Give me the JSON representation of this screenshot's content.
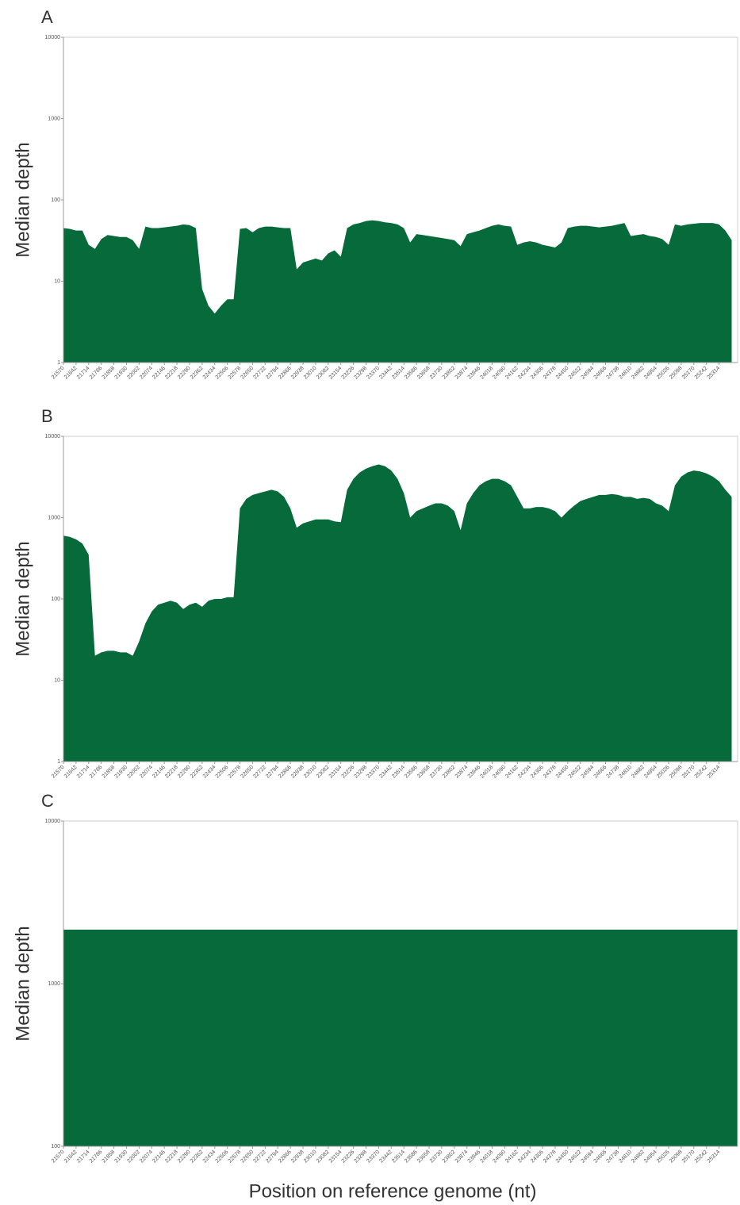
{
  "chart_data": [
    {
      "type": "area",
      "title": "A",
      "ylabel": "Median depth",
      "color": "#076a3b",
      "log_y": true,
      "xlim": [
        21570,
        25420
      ],
      "ylim": [
        1,
        10000
      ],
      "yticks": [
        1,
        10,
        100,
        1000,
        10000
      ],
      "xticks": [
        21570,
        21642,
        21714,
        21786,
        21858,
        21930,
        22002,
        22074,
        22146,
        22218,
        22290,
        22362,
        22434,
        22506,
        22578,
        22650,
        22722,
        22794,
        22866,
        22938,
        23010,
        23082,
        23154,
        23226,
        23298,
        23370,
        23442,
        23514,
        23586,
        23658,
        23730,
        23802,
        23874,
        23946,
        24018,
        24090,
        24162,
        24234,
        24306,
        24378,
        24450,
        24522,
        24594,
        24666,
        24738,
        24810,
        24882,
        24954,
        25026,
        25098,
        25170,
        25242,
        25314
      ],
      "x": [
        21570,
        21606,
        21642,
        21678,
        21714,
        21750,
        21786,
        21822,
        21858,
        21894,
        21930,
        21966,
        22002,
        22038,
        22074,
        22110,
        22146,
        22182,
        22218,
        22254,
        22290,
        22326,
        22362,
        22398,
        22434,
        22470,
        22506,
        22542,
        22578,
        22614,
        22650,
        22686,
        22722,
        22758,
        22794,
        22830,
        22866,
        22902,
        22938,
        22974,
        23010,
        23046,
        23082,
        23118,
        23154,
        23190,
        23226,
        23262,
        23298,
        23334,
        23370,
        23406,
        23442,
        23478,
        23514,
        23550,
        23586,
        23622,
        23658,
        23694,
        23730,
        23766,
        23802,
        23838,
        23874,
        23910,
        23946,
        23982,
        24018,
        24054,
        24090,
        24126,
        24162,
        24198,
        24234,
        24270,
        24306,
        24342,
        24378,
        24414,
        24450,
        24486,
        24522,
        24558,
        24594,
        24630,
        24666,
        24702,
        24738,
        24774,
        24810,
        24846,
        24882,
        24918,
        24954,
        24990,
        25026,
        25062,
        25098,
        25134,
        25170,
        25206,
        25242,
        25278,
        25314,
        25350,
        25386
      ],
      "values": [
        45,
        44,
        42,
        42,
        28,
        25,
        33,
        37,
        36,
        35,
        35,
        32,
        25,
        47,
        45,
        45,
        46,
        47,
        48,
        50,
        49,
        45,
        8,
        5,
        4,
        5,
        6,
        6,
        44,
        45,
        40,
        45,
        47,
        47,
        46,
        45,
        45,
        14,
        17,
        18,
        19,
        18,
        22,
        24,
        20,
        45,
        50,
        52,
        55,
        56,
        55,
        53,
        52,
        50,
        45,
        30,
        38,
        37,
        36,
        35,
        34,
        33,
        32,
        27,
        38,
        40,
        42,
        45,
        48,
        50,
        48,
        47,
        28,
        30,
        31,
        30,
        28,
        27,
        26,
        30,
        45,
        47,
        48,
        48,
        47,
        46,
        47,
        48,
        50,
        52,
        36,
        37,
        38,
        36,
        35,
        33,
        28,
        50,
        48,
        50,
        51,
        52,
        52,
        52,
        50,
        42,
        32
      ]
    },
    {
      "type": "area",
      "title": "B",
      "ylabel": "Median depth",
      "color": "#076a3b",
      "log_y": true,
      "xlim": [
        21570,
        25420
      ],
      "ylim": [
        1,
        10000
      ],
      "yticks": [
        1,
        10,
        100,
        1000,
        10000
      ],
      "xticks": [
        21570,
        21642,
        21714,
        21786,
        21858,
        21930,
        22002,
        22074,
        22146,
        22218,
        22290,
        22362,
        22434,
        22506,
        22578,
        22650,
        22722,
        22794,
        22866,
        22938,
        23010,
        23082,
        23154,
        23226,
        23298,
        23370,
        23442,
        23514,
        23586,
        23658,
        23730,
        23802,
        23874,
        23946,
        24018,
        24090,
        24162,
        24234,
        24306,
        24378,
        24450,
        24522,
        24594,
        24666,
        24738,
        24810,
        24882,
        24954,
        25026,
        25098,
        25170,
        25242,
        25314
      ],
      "x": [
        21570,
        21606,
        21642,
        21678,
        21714,
        21750,
        21786,
        21822,
        21858,
        21894,
        21930,
        21966,
        22002,
        22038,
        22074,
        22110,
        22146,
        22182,
        22218,
        22254,
        22290,
        22326,
        22362,
        22398,
        22434,
        22470,
        22506,
        22542,
        22578,
        22614,
        22650,
        22686,
        22722,
        22758,
        22794,
        22830,
        22866,
        22902,
        22938,
        22974,
        23010,
        23046,
        23082,
        23118,
        23154,
        23190,
        23226,
        23262,
        23298,
        23334,
        23370,
        23406,
        23442,
        23478,
        23514,
        23550,
        23586,
        23622,
        23658,
        23694,
        23730,
        23766,
        23802,
        23838,
        23874,
        23910,
        23946,
        23982,
        24018,
        24054,
        24090,
        24126,
        24162,
        24198,
        24234,
        24270,
        24306,
        24342,
        24378,
        24414,
        24450,
        24486,
        24522,
        24558,
        24594,
        24630,
        24666,
        24702,
        24738,
        24774,
        24810,
        24846,
        24882,
        24918,
        24954,
        24990,
        25026,
        25062,
        25098,
        25134,
        25170,
        25206,
        25242,
        25278,
        25314,
        25350,
        25386
      ],
      "values": [
        600,
        580,
        540,
        480,
        350,
        20,
        22,
        23,
        23,
        22,
        22,
        20,
        30,
        50,
        70,
        85,
        90,
        95,
        90,
        75,
        85,
        90,
        80,
        95,
        100,
        100,
        105,
        105,
        1300,
        1700,
        1900,
        2000,
        2100,
        2200,
        2100,
        1800,
        1300,
        750,
        850,
        900,
        950,
        950,
        950,
        900,
        880,
        2200,
        3000,
        3600,
        4000,
        4300,
        4500,
        4300,
        3800,
        3000,
        2000,
        1000,
        1200,
        1300,
        1400,
        1500,
        1500,
        1400,
        1200,
        700,
        1500,
        2000,
        2500,
        2800,
        3000,
        3000,
        2800,
        2500,
        1800,
        1300,
        1300,
        1350,
        1350,
        1300,
        1200,
        1000,
        1200,
        1400,
        1600,
        1700,
        1800,
        1900,
        1900,
        1950,
        1900,
        1800,
        1800,
        1700,
        1750,
        1700,
        1500,
        1400,
        1200,
        2500,
        3200,
        3600,
        3800,
        3700,
        3500,
        3200,
        2800,
        2200,
        1800
      ]
    },
    {
      "type": "area",
      "title": "C",
      "ylabel": "Median depth",
      "xlabel": "Position on reference genome (nt)",
      "color": "#076a3b",
      "log_y": true,
      "xlim": [
        21570,
        25420
      ],
      "ylim": [
        100,
        10000
      ],
      "yticks": [
        100,
        1000,
        10000
      ],
      "xticks": [
        21570,
        21642,
        21714,
        21786,
        21858,
        21930,
        22002,
        22074,
        22146,
        22218,
        22290,
        22362,
        22434,
        22506,
        22578,
        22650,
        22722,
        22794,
        22866,
        22938,
        23010,
        23082,
        23154,
        23226,
        23298,
        23370,
        23442,
        23514,
        23586,
        23658,
        23730,
        23802,
        23874,
        23946,
        24018,
        24090,
        24162,
        24234,
        24306,
        24378,
        24450,
        24522,
        24594,
        24666,
        24738,
        24810,
        24882,
        24954,
        25026,
        25098,
        25170,
        25242,
        25314
      ],
      "x": [
        21570,
        25420
      ],
      "values": [
        2150,
        2150
      ]
    }
  ]
}
